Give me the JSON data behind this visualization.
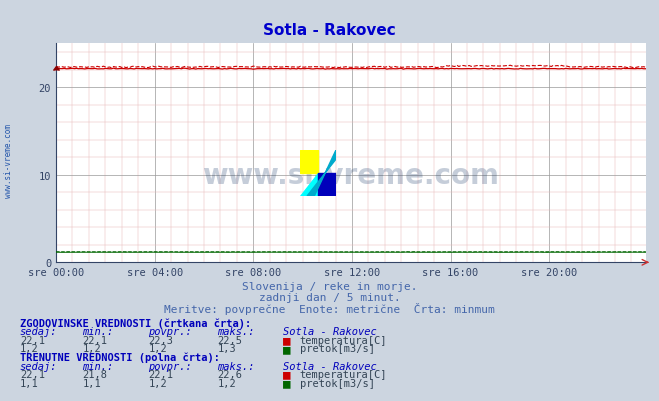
{
  "title": "Sotla - Rakovec",
  "title_color": "#0000cc",
  "bg_color": "#ccd5e0",
  "plot_bg_color": "#ffffff",
  "x_labels": [
    "sre 00:00",
    "sre 04:00",
    "sre 08:00",
    "sre 12:00",
    "sre 16:00",
    "sre 20:00"
  ],
  "x_ticks": [
    0,
    48,
    96,
    144,
    192,
    240
  ],
  "x_max": 287,
  "y_min": 0,
  "y_max": 25,
  "subtitle1": "Slovenija / reke in morje.",
  "subtitle2": "zadnji dan / 5 minut.",
  "subtitle3": "Meritve: povprečne  Enote: metrične  Črta: minmum",
  "subtitle_color": "#4466aa",
  "temp_color": "#cc0000",
  "flow_color": "#006600",
  "temp_hist_value": 22.3,
  "temp_hist_min": 22.1,
  "temp_hist_max": 22.5,
  "temp_curr_value": 22.1,
  "temp_curr_min": 21.8,
  "temp_curr_max": 22.6,
  "flow_hist_value": 1.2,
  "flow_curr_value": 1.15,
  "watermark": "www.si-vreme.com",
  "watermark_color": "#1a3a6a",
  "sidebar_text": "www.si-vreme.com",
  "sidebar_color": "#2255aa",
  "table_header_color": "#0000bb",
  "table_data_color": "#334455",
  "legend_temp_color": "#cc0000",
  "legend_flow_color": "#006600",
  "n_points": 288,
  "hist_vals_temp": [
    "22,1",
    "22,1",
    "22,3",
    "22,5"
  ],
  "hist_vals_flow": [
    "1,2",
    "1,2",
    "1,2",
    "1,3"
  ],
  "curr_vals_temp": [
    "22,1",
    "21,8",
    "22,1",
    "22,6"
  ],
  "curr_vals_flow": [
    "1,1",
    "1,1",
    "1,2",
    "1,2"
  ],
  "col_headers": [
    "sedaj:",
    "min.:",
    "povpr.:",
    "maks.:",
    "Sotla - Rakovec"
  ],
  "label_temp": "temperatura[C]",
  "label_flow": "pretok[m3/s]",
  "label_hist": "ZGODOVINSKE VREDNOSTI (črtkana črta):",
  "label_curr": "TRENUTNE VREDNOSTI (polna črta):"
}
